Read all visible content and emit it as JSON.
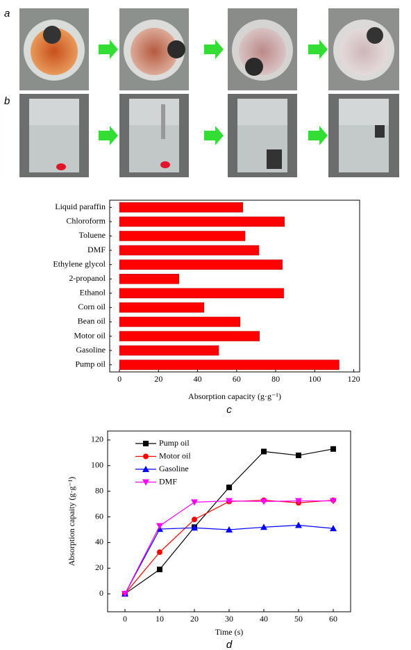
{
  "photos": {
    "rows": [
      {
        "label": "a"
      },
      {
        "label": "b"
      }
    ]
  },
  "chart_data": [
    {
      "type": "hbar",
      "label": "c",
      "xlabel": "Absorption capacity (g·g⁻¹)",
      "categories": [
        "Liquid paraffin",
        "Chloroform",
        "Toluene",
        "DMF",
        "Ethylene glycol",
        "2-propanol",
        "Ethanol",
        "Corn oil",
        "Bean oil",
        "Motor oil",
        "Gasoline",
        "Pump oil"
      ],
      "values": [
        63.2,
        84.5,
        64.3,
        71.4,
        83.4,
        30.5,
        84.1,
        43.3,
        61.8,
        71.7,
        50.8,
        112.5
      ],
      "color": "#ff0000",
      "xlim": [
        -5,
        123
      ],
      "xticks": [
        0,
        20,
        40,
        60,
        80,
        100,
        120
      ]
    },
    {
      "type": "line",
      "label": "d",
      "xlabel": "Time (s)",
      "ylabel": "Absorption capaity (g·g⁻¹)",
      "x": [
        0,
        10,
        20,
        30,
        40,
        50,
        60
      ],
      "series": [
        {
          "name": "Pump oil",
          "color": "#000000",
          "marker": "square",
          "values": [
            0,
            19,
            52,
            83,
            111,
            108,
            113
          ]
        },
        {
          "name": "Motor oil",
          "color": "#ff0000",
          "marker": "circle",
          "values": [
            0,
            32.5,
            58,
            72,
            73,
            71,
            73
          ]
        },
        {
          "name": "Gasoline",
          "color": "#0000ff",
          "marker": "triangle",
          "values": [
            0,
            50.5,
            51.5,
            50,
            52,
            53.5,
            51
          ]
        },
        {
          "name": "DMF",
          "color": "#ff00ff",
          "marker": "triangle-down",
          "values": [
            0,
            53,
            71.5,
            72.5,
            72,
            72.5,
            72.5
          ]
        }
      ],
      "xlim": [
        -5,
        65
      ],
      "ylim": [
        -14,
        127
      ],
      "xticks": [
        0,
        10,
        20,
        30,
        40,
        50,
        60
      ],
      "yticks": [
        0,
        20,
        40,
        60,
        80,
        100,
        120
      ],
      "legend": "top-left"
    }
  ]
}
